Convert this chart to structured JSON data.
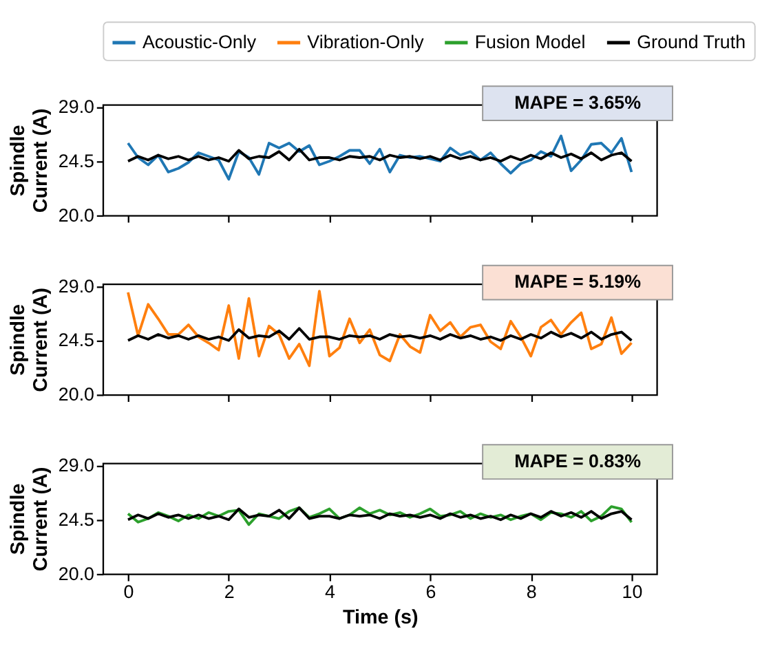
{
  "chart_data": [
    {
      "type": "line",
      "ylabel": "Spindle Current (A)",
      "legend": "top",
      "grid": false,
      "tick_labels": "y",
      "xlim": [
        -0.5,
        10.5
      ],
      "xticks": [
        0,
        2,
        4,
        6,
        8,
        10
      ],
      "ylim": [
        20,
        29.2
      ],
      "yticks": [
        {
          "value": 20,
          "label": "20.0"
        },
        {
          "value": 24.5,
          "label": "24.5"
        },
        {
          "value": 29,
          "label": "29.0"
        }
      ],
      "annotations": [
        "MAPE = 3.65%"
      ],
      "x": [
        0,
        0.2,
        0.4,
        0.6,
        0.8,
        1,
        1.2,
        1.4,
        1.6,
        1.8,
        2,
        2.2,
        2.4,
        2.6,
        2.8,
        3,
        3.2,
        3.4,
        3.6,
        3.8,
        4,
        4.2,
        4.4,
        4.6,
        4.8,
        5,
        5.2,
        5.4,
        5.6,
        5.8,
        6,
        6.2,
        6.4,
        6.6,
        6.8,
        7,
        7.2,
        7.4,
        7.6,
        7.8,
        8,
        8.2,
        8.4,
        8.6,
        8.8,
        9,
        9.2,
        9.4,
        9.6,
        9.8,
        10
      ],
      "series": [
        {
          "name": "Acoustic-Only",
          "color": "#1f77b4",
          "values": [
            26.0,
            24.8,
            24.2,
            25.0,
            23.6,
            23.9,
            24.4,
            25.2,
            24.9,
            24.6,
            23.0,
            25.3,
            24.8,
            23.4,
            26.0,
            25.6,
            26.0,
            25.3,
            25.8,
            24.2,
            24.5,
            24.9,
            25.4,
            25.4,
            24.3,
            25.5,
            23.6,
            25.0,
            24.8,
            24.9,
            24.7,
            24.5,
            25.6,
            25.0,
            25.3,
            24.6,
            25.2,
            24.3,
            23.5,
            24.3,
            24.6,
            25.3,
            24.9,
            26.6,
            23.7,
            24.6,
            25.9,
            26.0,
            25.2,
            26.4,
            23.6
          ]
        },
        {
          "name": "Ground Truth",
          "color": "#000000",
          "values": [
            24.5,
            24.9,
            24.6,
            25.0,
            24.7,
            24.9,
            24.6,
            24.9,
            24.6,
            24.8,
            24.5,
            25.4,
            24.7,
            24.9,
            24.8,
            25.3,
            24.6,
            25.5,
            24.6,
            24.8,
            24.8,
            24.6,
            24.9,
            24.8,
            24.9,
            24.6,
            25.0,
            24.8,
            24.9,
            24.7,
            24.9,
            24.6,
            25.0,
            24.7,
            24.9,
            24.6,
            24.8,
            24.5,
            24.9,
            24.6,
            25.0,
            24.7,
            25.2,
            24.8,
            25.1,
            24.7,
            25.2,
            24.6,
            25.0,
            25.2,
            24.5
          ]
        }
      ]
    },
    {
      "type": "line",
      "ylabel": "Spindle Current (A)",
      "grid": false,
      "tick_labels": "y",
      "xlim": [
        -0.5,
        10.5
      ],
      "xticks": [
        0,
        2,
        4,
        6,
        8,
        10
      ],
      "ylim": [
        20,
        29.2
      ],
      "yticks": [
        {
          "value": 20,
          "label": "20.0"
        },
        {
          "value": 24.5,
          "label": "24.5"
        },
        {
          "value": 29,
          "label": "29.0"
        }
      ],
      "annotations": [
        "MAPE = 5.19%"
      ],
      "x": [
        0,
        0.2,
        0.4,
        0.6,
        0.8,
        1,
        1.2,
        1.4,
        1.6,
        1.8,
        2,
        2.2,
        2.4,
        2.6,
        2.8,
        3,
        3.2,
        3.4,
        3.6,
        3.8,
        4,
        4.2,
        4.4,
        4.6,
        4.8,
        5,
        5.2,
        5.4,
        5.6,
        5.8,
        6,
        6.2,
        6.4,
        6.6,
        6.8,
        7,
        7.2,
        7.4,
        7.6,
        7.8,
        8,
        8.2,
        8.4,
        8.6,
        8.8,
        9,
        9.2,
        9.4,
        9.6,
        9.8,
        10
      ],
      "series": [
        {
          "name": "Vibration-Only",
          "color": "#ff7f0e",
          "values": [
            28.5,
            24.9,
            27.5,
            26.3,
            25.0,
            25.0,
            25.8,
            24.8,
            24.3,
            23.7,
            27.4,
            23.0,
            28.0,
            23.2,
            25.7,
            25.0,
            23.0,
            24.2,
            22.4,
            28.6,
            23.2,
            23.9,
            26.3,
            24.3,
            25.4,
            23.3,
            22.8,
            25.0,
            24.0,
            23.5,
            26.6,
            25.3,
            26.0,
            24.8,
            25.6,
            25.8,
            24.4,
            23.8,
            26.1,
            24.8,
            23.2,
            25.6,
            26.2,
            25.0,
            26.0,
            26.8,
            23.8,
            24.2,
            26.4,
            23.4,
            24.3
          ]
        },
        {
          "name": "Ground Truth",
          "color": "#000000",
          "values": [
            24.5,
            24.9,
            24.6,
            25.0,
            24.7,
            24.9,
            24.6,
            24.9,
            24.6,
            24.8,
            24.5,
            25.4,
            24.7,
            24.9,
            24.8,
            25.3,
            24.6,
            25.5,
            24.6,
            24.8,
            24.8,
            24.6,
            24.9,
            24.8,
            24.9,
            24.6,
            25.0,
            24.8,
            24.9,
            24.7,
            24.9,
            24.6,
            25.0,
            24.7,
            24.9,
            24.6,
            24.8,
            24.5,
            24.9,
            24.6,
            25.0,
            24.7,
            25.2,
            24.8,
            25.1,
            24.7,
            25.2,
            24.6,
            25.0,
            25.2,
            24.5
          ]
        }
      ]
    },
    {
      "type": "line",
      "ylabel": "Spindle Current (A)",
      "xlabel": "Time (s)",
      "grid": false,
      "xlim": [
        -0.5,
        10.5
      ],
      "xticks": [
        0,
        2,
        4,
        6,
        8,
        10
      ],
      "ylim": [
        20,
        29.2
      ],
      "yticks": [
        {
          "value": 20,
          "label": "20.0"
        },
        {
          "value": 24.5,
          "label": "24.5"
        },
        {
          "value": 29,
          "label": "29.0"
        }
      ],
      "annotations": [
        "MAPE = 0.83%"
      ],
      "x": [
        0,
        0.2,
        0.4,
        0.6,
        0.8,
        1,
        1.2,
        1.4,
        1.6,
        1.8,
        2,
        2.2,
        2.4,
        2.6,
        2.8,
        3,
        3.2,
        3.4,
        3.6,
        3.8,
        4,
        4.2,
        4.4,
        4.6,
        4.8,
        5,
        5.2,
        5.4,
        5.6,
        5.8,
        6,
        6.2,
        6.4,
        6.6,
        6.8,
        7,
        7.2,
        7.4,
        7.6,
        7.8,
        8,
        8.2,
        8.4,
        8.6,
        8.8,
        9,
        9.2,
        9.4,
        9.6,
        9.8,
        10
      ],
      "series": [
        {
          "name": "Fusion Model",
          "color": "#2ca02c",
          "values": [
            25.0,
            24.3,
            24.6,
            25.1,
            24.8,
            24.4,
            24.9,
            24.6,
            25.1,
            24.8,
            25.2,
            25.3,
            24.1,
            25.0,
            24.8,
            24.6,
            25.2,
            25.5,
            24.7,
            25.0,
            25.4,
            24.6,
            24.9,
            25.5,
            25.0,
            25.3,
            24.9,
            25.1,
            24.7,
            25.0,
            25.4,
            24.8,
            24.9,
            25.2,
            24.6,
            25.0,
            24.7,
            24.9,
            24.5,
            24.8,
            25.0,
            24.5,
            25.1,
            25.0,
            24.7,
            25.2,
            24.4,
            24.8,
            25.6,
            25.4,
            24.3
          ]
        },
        {
          "name": "Ground Truth",
          "color": "#000000",
          "values": [
            24.5,
            24.9,
            24.6,
            25.0,
            24.7,
            24.9,
            24.6,
            24.9,
            24.6,
            24.8,
            24.5,
            25.4,
            24.7,
            24.9,
            24.8,
            25.3,
            24.6,
            25.5,
            24.6,
            24.8,
            24.8,
            24.6,
            24.9,
            24.8,
            24.9,
            24.6,
            25.0,
            24.8,
            24.9,
            24.7,
            24.9,
            24.6,
            25.0,
            24.7,
            24.9,
            24.6,
            24.8,
            24.5,
            24.9,
            24.6,
            25.0,
            24.7,
            25.2,
            24.8,
            25.1,
            24.7,
            25.2,
            24.6,
            25.0,
            25.2,
            24.5
          ]
        }
      ]
    }
  ]
}
